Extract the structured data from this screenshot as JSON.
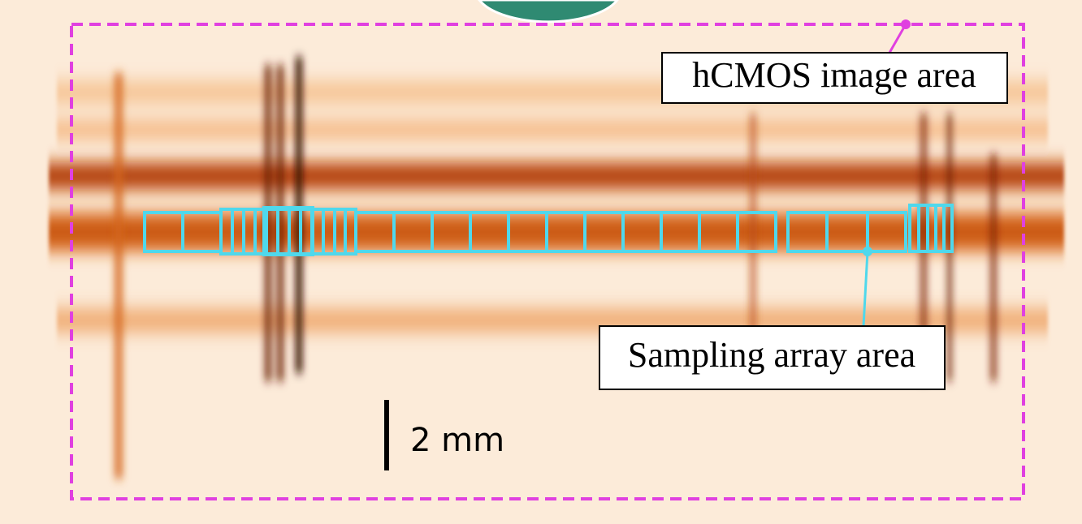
{
  "annotations": {
    "image_area_label": "hCMOS image area",
    "sampling_area_label": "Sampling array area",
    "scale_bar_label": "2 mm"
  }
}
